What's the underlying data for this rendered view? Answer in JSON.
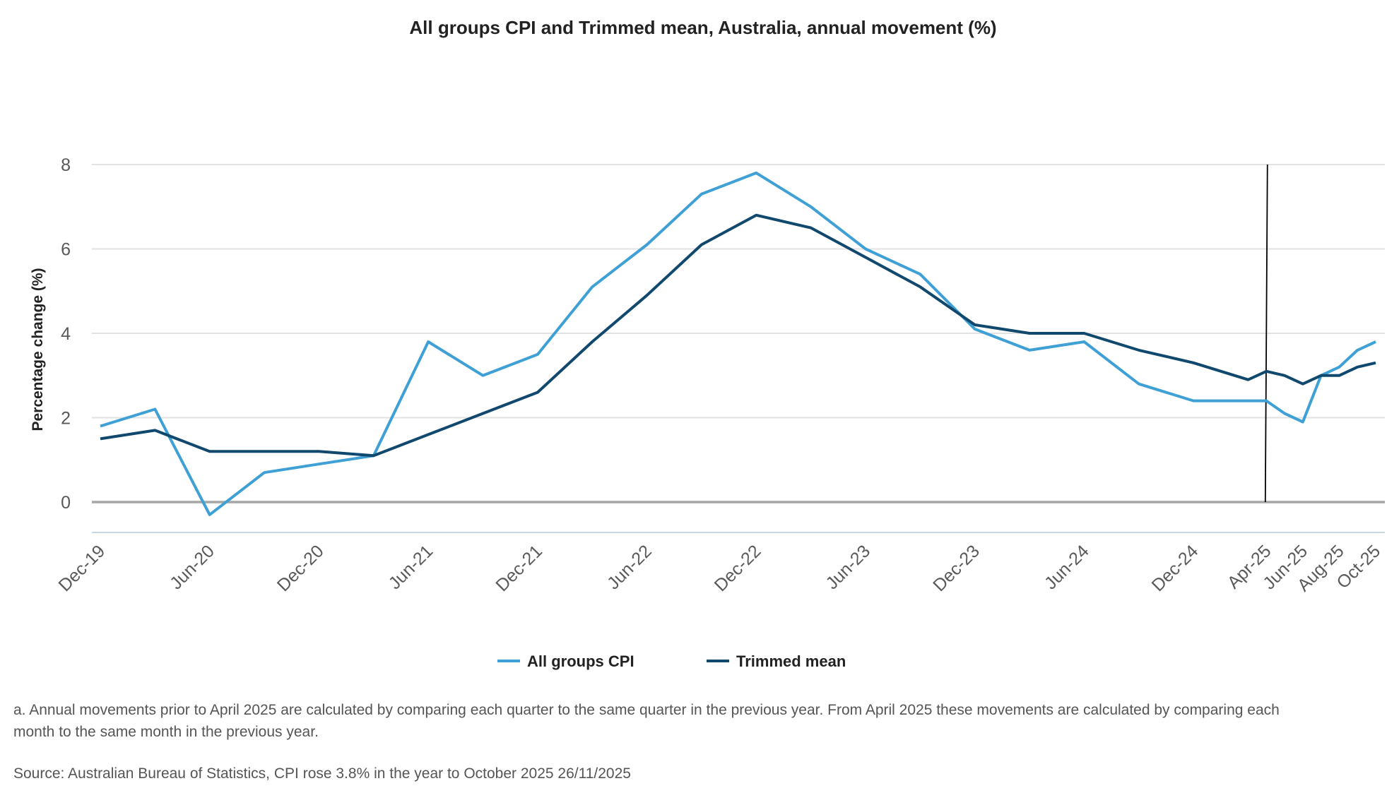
{
  "chart_data": {
    "type": "line",
    "title": "All groups CPI and Trimmed mean, Australia, annual movement (%)",
    "xlabel": "",
    "ylabel": "Percentage change (%)",
    "ylim": [
      -0.8,
      8
    ],
    "yticks": [
      0,
      2,
      4,
      6,
      8
    ],
    "grid": true,
    "legend": "bottom-center",
    "x": [
      "Dec-19",
      "Mar-20",
      "Jun-20",
      "Sep-20",
      "Dec-20",
      "Mar-21",
      "Jun-21",
      "Sep-21",
      "Dec-21",
      "Mar-22",
      "Jun-22",
      "Sep-22",
      "Dec-22",
      "Mar-23",
      "Jun-23",
      "Sep-23",
      "Dec-23",
      "Mar-24",
      "Jun-24",
      "Sep-24",
      "Dec-24",
      "Mar-25",
      "Apr-25",
      "May-25",
      "Jun-25",
      "Jul-25",
      "Aug-25",
      "Sep-25",
      "Oct-25"
    ],
    "xtick_labels": [
      "Dec-19",
      "Jun-20",
      "Dec-20",
      "Jun-21",
      "Dec-21",
      "Jun-22",
      "Dec-22",
      "Jun-23",
      "Dec-23",
      "Jun-24",
      "Dec-24",
      "Apr-25",
      "Jun-25",
      "Aug-25",
      "Oct-25"
    ],
    "series": [
      {
        "name": "All groups CPI",
        "color": "#3fa0d6",
        "values": [
          1.8,
          2.2,
          -0.3,
          0.7,
          0.9,
          1.1,
          3.8,
          3.0,
          3.5,
          5.1,
          6.1,
          7.3,
          7.8,
          7.0,
          6.0,
          5.4,
          4.1,
          3.6,
          3.8,
          2.8,
          2.4,
          2.4,
          2.4,
          2.1,
          1.9,
          3.0,
          3.2,
          3.6,
          3.8
        ]
      },
      {
        "name": "Trimmed mean",
        "color": "#10486e",
        "values": [
          1.5,
          1.7,
          1.2,
          1.2,
          1.2,
          1.1,
          1.6,
          2.1,
          2.6,
          3.8,
          4.9,
          6.1,
          6.8,
          6.5,
          5.8,
          5.1,
          4.2,
          4.0,
          4.0,
          3.6,
          3.3,
          2.9,
          3.1,
          3.0,
          2.8,
          3.0,
          3.0,
          3.2,
          3.3
        ]
      }
    ],
    "reference_line": {
      "x": "Apr-25",
      "color": "#000000"
    }
  },
  "footnote": "a. Annual movements prior to April 2025 are calculated by comparing each quarter to the same quarter in the previous year.  From April 2025 these movements are calculated by comparing each month to the same month in the previous year.",
  "source": "Source: Australian Bureau of Statistics, CPI rose 3.8% in the year to October 2025 26/11/2025"
}
